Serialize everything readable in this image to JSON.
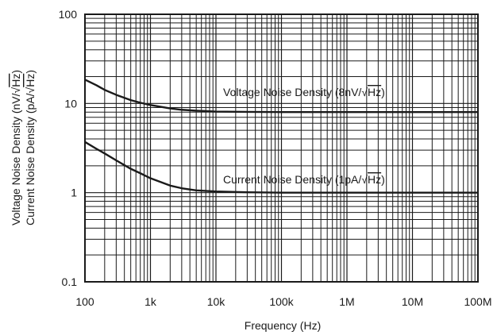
{
  "chart_data": {
    "type": "line",
    "title": "",
    "xlabel": "Frequency (Hz)",
    "ylabel_voltage": {
      "prefix": "Voltage Noise Density (nV/",
      "radical": "√",
      "radicand": "Hz",
      "suffix": ")"
    },
    "ylabel_current": {
      "prefix": "Current Noise Density (pA/",
      "radical": "√",
      "radicand": "Hz",
      "suffix": ")"
    },
    "x_scale": "log",
    "y_scale": "log",
    "xlim": [
      100,
      100000000
    ],
    "ylim": [
      0.1,
      100
    ],
    "x_ticks": [
      {
        "value": 100,
        "label": "100"
      },
      {
        "value": 1000,
        "label": "1k"
      },
      {
        "value": 10000,
        "label": "10k"
      },
      {
        "value": 100000,
        "label": "100k"
      },
      {
        "value": 1000000,
        "label": "1M"
      },
      {
        "value": 10000000,
        "label": "10M"
      },
      {
        "value": 100000000,
        "label": "100M"
      }
    ],
    "y_ticks": [
      {
        "value": 0.1,
        "label": "0.1"
      },
      {
        "value": 1,
        "label": "1"
      },
      {
        "value": 10,
        "label": "10"
      },
      {
        "value": 100,
        "label": "100"
      }
    ],
    "grid": true,
    "legend": "none",
    "series": [
      {
        "label_prefix": "Voltage Noise Density (8nV/",
        "label_radical": "√",
        "label_radicand": "Hz",
        "label_suffix": ")",
        "x": [
          100,
          150,
          200,
          300,
          500,
          700,
          1000,
          2000,
          3000,
          5000,
          10000,
          30000,
          100000,
          1000000,
          10000000,
          100000000
        ],
        "y": [
          18.5,
          16,
          14.2,
          12.5,
          10.9,
          10.2,
          9.6,
          8.8,
          8.5,
          8.3,
          8.1,
          8.05,
          8.0,
          8.0,
          8.0,
          8.0
        ]
      },
      {
        "label_prefix": "Current Noise Density (1pA/",
        "label_radical": "√",
        "label_radicand": "Hz",
        "label_suffix": ")",
        "x": [
          100,
          150,
          200,
          300,
          500,
          700,
          1000,
          2000,
          3000,
          5000,
          10000,
          30000,
          100000,
          1000000,
          10000000,
          100000000
        ],
        "y": [
          3.7,
          3.1,
          2.75,
          2.3,
          1.85,
          1.65,
          1.45,
          1.2,
          1.12,
          1.06,
          1.03,
          1.01,
          1.0,
          1.0,
          1.0,
          1.0
        ]
      }
    ]
  }
}
